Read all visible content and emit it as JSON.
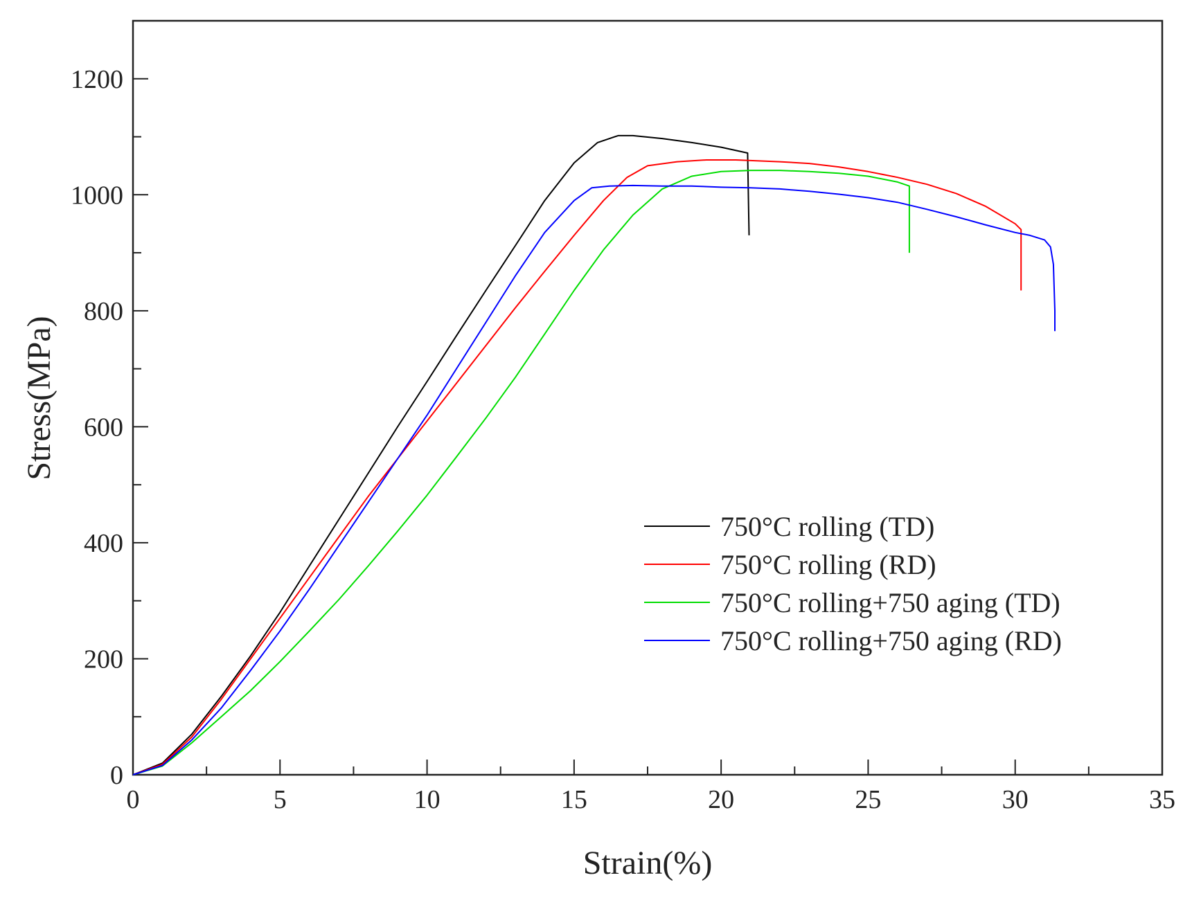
{
  "chart_data": {
    "type": "line",
    "title": "",
    "xlabel": "Strain(%)",
    "ylabel": "Stress(MPa)",
    "xlim": [
      0,
      35
    ],
    "ylim": [
      0,
      1300
    ],
    "x_major_ticks": [
      0,
      5,
      10,
      15,
      20,
      25,
      30,
      35
    ],
    "y_major_ticks": [
      0,
      200,
      400,
      600,
      800,
      1000,
      1200
    ],
    "x_tick_labels": [
      "0",
      "5",
      "10",
      "15",
      "20",
      "25",
      "30",
      "35"
    ],
    "y_tick_labels": [
      "0",
      "200",
      "400",
      "600",
      "800",
      "1000",
      "1200"
    ],
    "grid": false,
    "legend_position": "center-right",
    "series": [
      {
        "name": "750°C rolling (TD)",
        "color": "#000000",
        "points": [
          [
            0,
            0
          ],
          [
            1,
            20
          ],
          [
            2,
            70
          ],
          [
            3,
            135
          ],
          [
            4,
            205
          ],
          [
            5,
            280
          ],
          [
            6,
            360
          ],
          [
            7,
            440
          ],
          [
            8,
            520
          ],
          [
            9,
            600
          ],
          [
            10,
            678
          ],
          [
            11,
            757
          ],
          [
            12,
            835
          ],
          [
            13,
            912
          ],
          [
            14,
            990
          ],
          [
            15,
            1055
          ],
          [
            15.8,
            1090
          ],
          [
            16.5,
            1102
          ],
          [
            17,
            1102
          ],
          [
            18,
            1097
          ],
          [
            19,
            1090
          ],
          [
            20,
            1082
          ],
          [
            20.9,
            1072
          ],
          [
            20.95,
            930
          ]
        ]
      },
      {
        "name": "750°C rolling (RD)",
        "color": "#ff0000",
        "points": [
          [
            0,
            0
          ],
          [
            1,
            18
          ],
          [
            2,
            65
          ],
          [
            3,
            130
          ],
          [
            4,
            200
          ],
          [
            5,
            270
          ],
          [
            6,
            340
          ],
          [
            7,
            410
          ],
          [
            8,
            480
          ],
          [
            9,
            545
          ],
          [
            10,
            610
          ],
          [
            11,
            675
          ],
          [
            12,
            740
          ],
          [
            13,
            805
          ],
          [
            14,
            868
          ],
          [
            15,
            930
          ],
          [
            16,
            990
          ],
          [
            16.8,
            1030
          ],
          [
            17.5,
            1050
          ],
          [
            18.5,
            1057
          ],
          [
            19.5,
            1060
          ],
          [
            20.5,
            1060
          ],
          [
            22,
            1057
          ],
          [
            23,
            1054
          ],
          [
            24,
            1048
          ],
          [
            25,
            1040
          ],
          [
            26,
            1030
          ],
          [
            27,
            1018
          ],
          [
            28,
            1002
          ],
          [
            29,
            980
          ],
          [
            30,
            950
          ],
          [
            30.2,
            940
          ],
          [
            30.2,
            835
          ]
        ]
      },
      {
        "name": "750°C rolling+750 aging (TD)",
        "color": "#00dd00",
        "points": [
          [
            0,
            0
          ],
          [
            1,
            15
          ],
          [
            2,
            55
          ],
          [
            3,
            100
          ],
          [
            4,
            145
          ],
          [
            5,
            195
          ],
          [
            6,
            248
          ],
          [
            7,
            302
          ],
          [
            8,
            360
          ],
          [
            9,
            420
          ],
          [
            10,
            482
          ],
          [
            11,
            548
          ],
          [
            12,
            615
          ],
          [
            13,
            685
          ],
          [
            14,
            760
          ],
          [
            15,
            835
          ],
          [
            16,
            905
          ],
          [
            17,
            965
          ],
          [
            18,
            1010
          ],
          [
            19,
            1032
          ],
          [
            20,
            1040
          ],
          [
            21,
            1042
          ],
          [
            22,
            1042
          ],
          [
            23,
            1040
          ],
          [
            24,
            1037
          ],
          [
            25,
            1032
          ],
          [
            26,
            1022
          ],
          [
            26.4,
            1015
          ],
          [
            26.4,
            900
          ]
        ]
      },
      {
        "name": "750°C rolling+750 aging (RD)",
        "color": "#0000ff",
        "points": [
          [
            0,
            0
          ],
          [
            1,
            16
          ],
          [
            2,
            60
          ],
          [
            3,
            115
          ],
          [
            4,
            180
          ],
          [
            5,
            248
          ],
          [
            6,
            320
          ],
          [
            7,
            395
          ],
          [
            8,
            470
          ],
          [
            9,
            545
          ],
          [
            10,
            620
          ],
          [
            11,
            700
          ],
          [
            12,
            780
          ],
          [
            13,
            860
          ],
          [
            14,
            935
          ],
          [
            15,
            990
          ],
          [
            15.6,
            1012
          ],
          [
            16.2,
            1015
          ],
          [
            17,
            1016
          ],
          [
            18,
            1015
          ],
          [
            19,
            1015
          ],
          [
            20,
            1013
          ],
          [
            21,
            1012
          ],
          [
            22,
            1010
          ],
          [
            23,
            1006
          ],
          [
            24,
            1001
          ],
          [
            25,
            995
          ],
          [
            26,
            987
          ],
          [
            27,
            975
          ],
          [
            28,
            962
          ],
          [
            29,
            948
          ],
          [
            30,
            935
          ],
          [
            30.5,
            930
          ],
          [
            31,
            922
          ],
          [
            31.2,
            910
          ],
          [
            31.3,
            880
          ],
          [
            31.35,
            800
          ],
          [
            31.35,
            765
          ]
        ]
      }
    ]
  }
}
